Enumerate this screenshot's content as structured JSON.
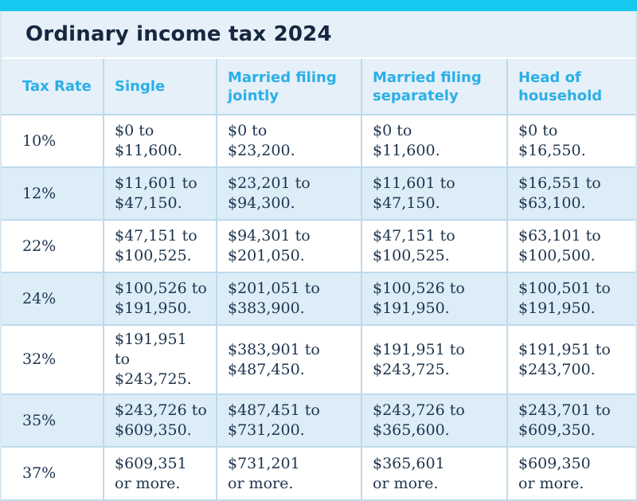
{
  "title": "Ordinary income tax 2024",
  "colors": {
    "accent_bar": "#14C8F0",
    "column_header_text": "#2BAFE8",
    "title_text": "#16273F",
    "body_text": "#1E344E",
    "band_bg": "#E5F0F8",
    "alt_row_bg": "#DCEDF8",
    "border": "#BEDAEC"
  },
  "chart_data": {
    "type": "table",
    "title": "Ordinary income tax 2024",
    "columns": [
      "Tax Rate",
      "Single",
      "Married filing jointly",
      "Married filing separately",
      "Head of household"
    ],
    "rows": [
      [
        "10%",
        "$0 to $11,600.",
        "$0 to $23,200.",
        "$0 to $11,600.",
        "$0 to $16,550."
      ],
      [
        "12%",
        "$11,601 to $47,150.",
        "$23,201 to $94,300.",
        "$11,601 to $47,150.",
        "$16,551 to $63,100."
      ],
      [
        "22%",
        "$47,151 to $100,525.",
        "$94,301 to $201,050.",
        "$47,151 to $100,525.",
        "$63,101 to $100,500."
      ],
      [
        "24%",
        "$100,526 to $191,950.",
        "$201,051 to $383,900.",
        "$100,526 to $191,950.",
        "$100,501 to $191,950."
      ],
      [
        "32%",
        "$191,951 to $243,725.",
        "$383,901 to $487,450.",
        "$191,951 to $243,725.",
        "$191,951 to $243,700."
      ],
      [
        "35%",
        "$243,726 to $609,350.",
        "$487,451 to $731,200.",
        "$243,726 to $365,600.",
        "$243,701 to $609,350."
      ],
      [
        "37%",
        "$609,351 or more.",
        "$731,201 or more.",
        "$365,601 or more.",
        "$609,350 or more."
      ]
    ]
  },
  "table": {
    "header_lines": [
      [
        "Tax Rate"
      ],
      [
        "Single"
      ],
      [
        "Married filing",
        "jointly"
      ],
      [
        "Married filing",
        "separately"
      ],
      [
        "Head of",
        "household"
      ]
    ],
    "row_lines": [
      [
        [
          "10%"
        ],
        [
          "$0 to",
          "$11,600."
        ],
        [
          "$0 to",
          "$23,200."
        ],
        [
          "$0 to",
          "$11,600."
        ],
        [
          "$0 to",
          "$16,550."
        ]
      ],
      [
        [
          "12%"
        ],
        [
          "$11,601 to",
          "$47,150."
        ],
        [
          "$23,201 to",
          "$94,300."
        ],
        [
          "$11,601 to",
          "$47,150."
        ],
        [
          "$16,551 to",
          "$63,100."
        ]
      ],
      [
        [
          "22%"
        ],
        [
          "$47,151 to",
          "$100,525."
        ],
        [
          "$94,301 to",
          "$201,050."
        ],
        [
          "$47,151 to",
          "$100,525."
        ],
        [
          "$63,101 to",
          "$100,500."
        ]
      ],
      [
        [
          "24%"
        ],
        [
          "$100,526 to",
          "$191,950."
        ],
        [
          "$201,051 to",
          "$383,900."
        ],
        [
          "$100,526 to",
          "$191,950."
        ],
        [
          "$100,501 to",
          "$191,950."
        ]
      ],
      [
        [
          "32%"
        ],
        [
          "$191,951",
          "to $243,725."
        ],
        [
          "$383,901 to",
          "$487,450."
        ],
        [
          "$191,951 to",
          "$243,725."
        ],
        [
          "$191,951 to",
          "$243,700."
        ]
      ],
      [
        [
          "35%"
        ],
        [
          "$243,726 to",
          "$609,350."
        ],
        [
          "$487,451 to",
          "$731,200."
        ],
        [
          "$243,726 to",
          "$365,600."
        ],
        [
          "$243,701 to",
          "$609,350."
        ]
      ],
      [
        [
          "37%"
        ],
        [
          "$609,351",
          "or more."
        ],
        [
          "$731,201",
          "or more."
        ],
        [
          "$365,601",
          "or more."
        ],
        [
          "$609,350",
          "or more."
        ]
      ]
    ]
  }
}
